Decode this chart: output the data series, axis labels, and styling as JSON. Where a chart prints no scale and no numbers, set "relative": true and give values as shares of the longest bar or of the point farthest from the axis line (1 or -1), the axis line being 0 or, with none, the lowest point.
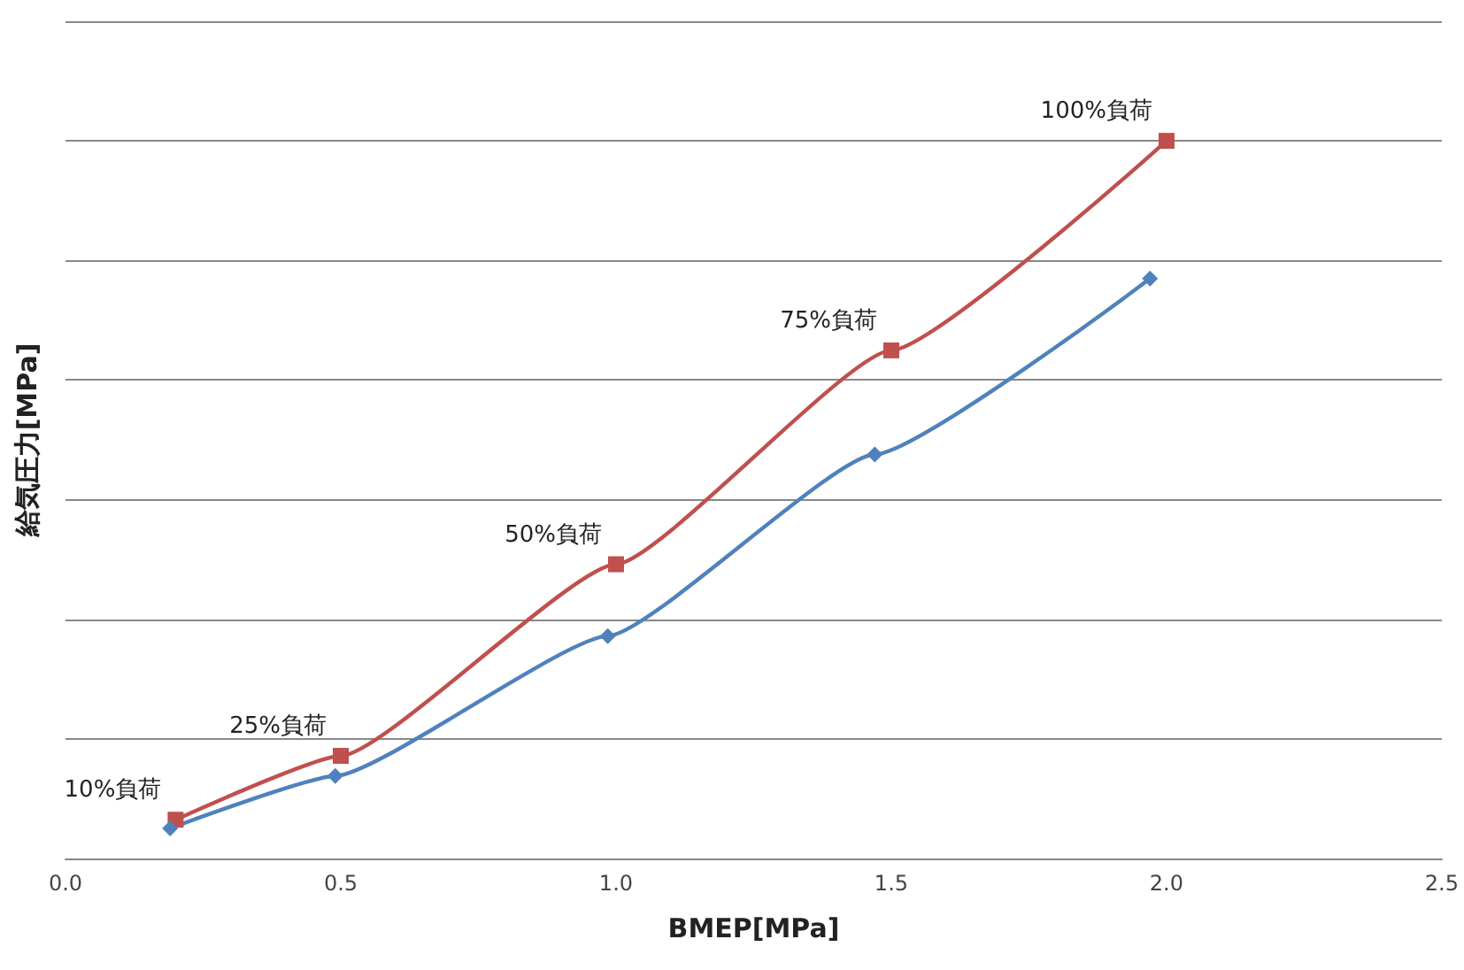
{
  "chart_data": {
    "type": "line",
    "relative": true,
    "xlabel": "BMEP[MPa]",
    "ylabel": "給気圧力[MPa]",
    "xlim": [
      0,
      2.5
    ],
    "xticks": [
      {
        "value": 0,
        "label": "0.0"
      },
      {
        "value": 0.5,
        "label": "0.5"
      },
      {
        "value": 1,
        "label": "1.0"
      },
      {
        "value": 1.5,
        "label": "1.5"
      },
      {
        "value": 2,
        "label": "2.0"
      },
      {
        "value": 2.5,
        "label": "2.5"
      }
    ],
    "grid": "y",
    "line_style": "solid",
    "series": [
      {
        "color": "#c0504d",
        "marker": "square",
        "x": [
          0.2,
          0.5,
          1.0,
          1.5,
          2.0
        ],
        "values": [
          0.054,
          0.143,
          0.41,
          0.708,
          1
        ]
      },
      {
        "color": "#4f81bd",
        "marker": "diamond",
        "x": [
          0.19,
          0.49,
          0.985,
          1.47,
          1.97
        ],
        "values": [
          0.042,
          0.115,
          0.31,
          0.563,
          0.808
        ]
      }
    ],
    "annotations": [
      {
        "text": "10%負荷",
        "x": 0.2,
        "y": 0.054
      },
      {
        "text": "25%負荷",
        "x": 0.5,
        "y": 0.143
      },
      {
        "text": "50%負荷",
        "x": 1.0,
        "y": 0.41
      },
      {
        "text": "75%負荷",
        "x": 1.5,
        "y": 0.708
      },
      {
        "text": "100%負荷",
        "x": 2.0,
        "y": 1
      }
    ]
  }
}
